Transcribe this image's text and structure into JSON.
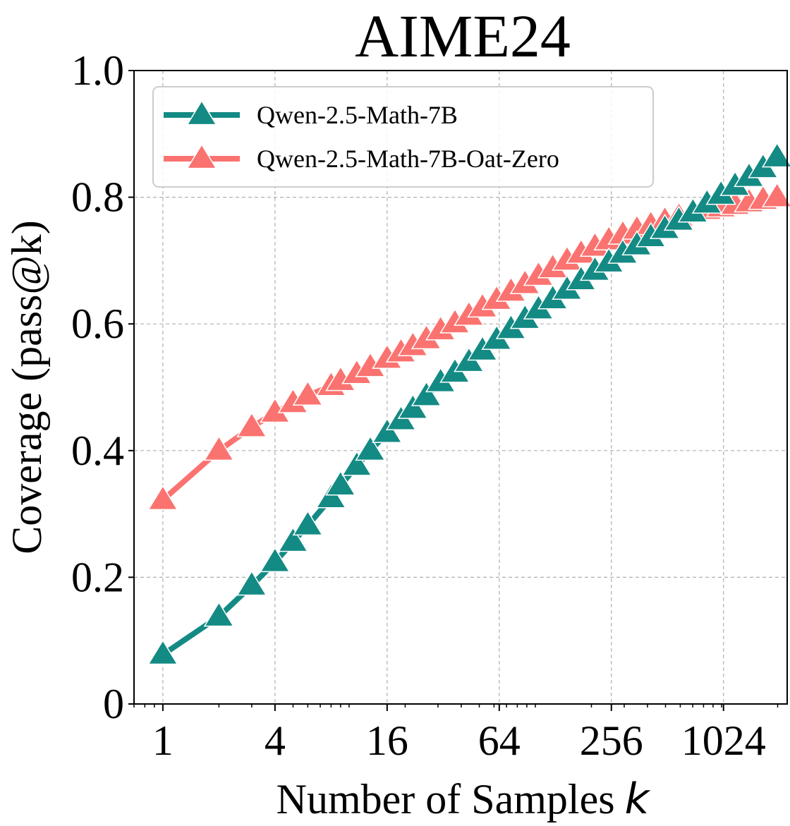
{
  "chart_data": {
    "type": "line",
    "title": "AIME24",
    "xlabel": "Number of Samples",
    "xlabel_var": "k",
    "ylabel": "Coverage (pass@k)",
    "xscale": "log2",
    "xlim": [
      0.7,
      2250
    ],
    "ylim": [
      0,
      1.0
    ],
    "x_ticks": [
      1,
      4,
      16,
      64,
      256,
      1024
    ],
    "x_tick_labels": [
      "1",
      "4",
      "16",
      "64",
      "256",
      "1024"
    ],
    "y_ticks": [
      0,
      0.2,
      0.4,
      0.6,
      0.8,
      1.0
    ],
    "y_tick_labels": [
      "0",
      "0.2",
      "0.4",
      "0.6",
      "0.8",
      "1.0"
    ],
    "grid": true,
    "legend_position": "top-left",
    "x": [
      1,
      2,
      3,
      4,
      5,
      6,
      8,
      9,
      11,
      13,
      16,
      19,
      22,
      26,
      31,
      37,
      44,
      52,
      62,
      74,
      88,
      104,
      124,
      148,
      176,
      209,
      248,
      295,
      351,
      417,
      496,
      590,
      702,
      835,
      993,
      1181,
      1404,
      1670,
      1986
    ],
    "series": [
      {
        "name": "Qwen-2.5-Math-7B",
        "color": "#148a84",
        "values": [
          0.078,
          0.138,
          0.187,
          0.224,
          0.256,
          0.282,
          0.325,
          0.345,
          0.376,
          0.4,
          0.428,
          0.448,
          0.466,
          0.486,
          0.508,
          0.523,
          0.54,
          0.558,
          0.575,
          0.592,
          0.608,
          0.623,
          0.639,
          0.654,
          0.669,
          0.684,
          0.697,
          0.711,
          0.724,
          0.737,
          0.75,
          0.763,
          0.776,
          0.79,
          0.804,
          0.818,
          0.832,
          0.846,
          0.863
        ]
      },
      {
        "name": "Qwen-2.5-Math-7B-Oat-Zero",
        "color": "#fa7370",
        "values": [
          0.322,
          0.4,
          0.437,
          0.46,
          0.475,
          0.487,
          0.502,
          0.51,
          0.521,
          0.532,
          0.545,
          0.555,
          0.565,
          0.576,
          0.59,
          0.601,
          0.613,
          0.626,
          0.638,
          0.651,
          0.663,
          0.676,
          0.688,
          0.7,
          0.711,
          0.722,
          0.732,
          0.741,
          0.749,
          0.756,
          0.763,
          0.769,
          0.775,
          0.78,
          0.784,
          0.788,
          0.792,
          0.796,
          0.8
        ]
      }
    ]
  }
}
